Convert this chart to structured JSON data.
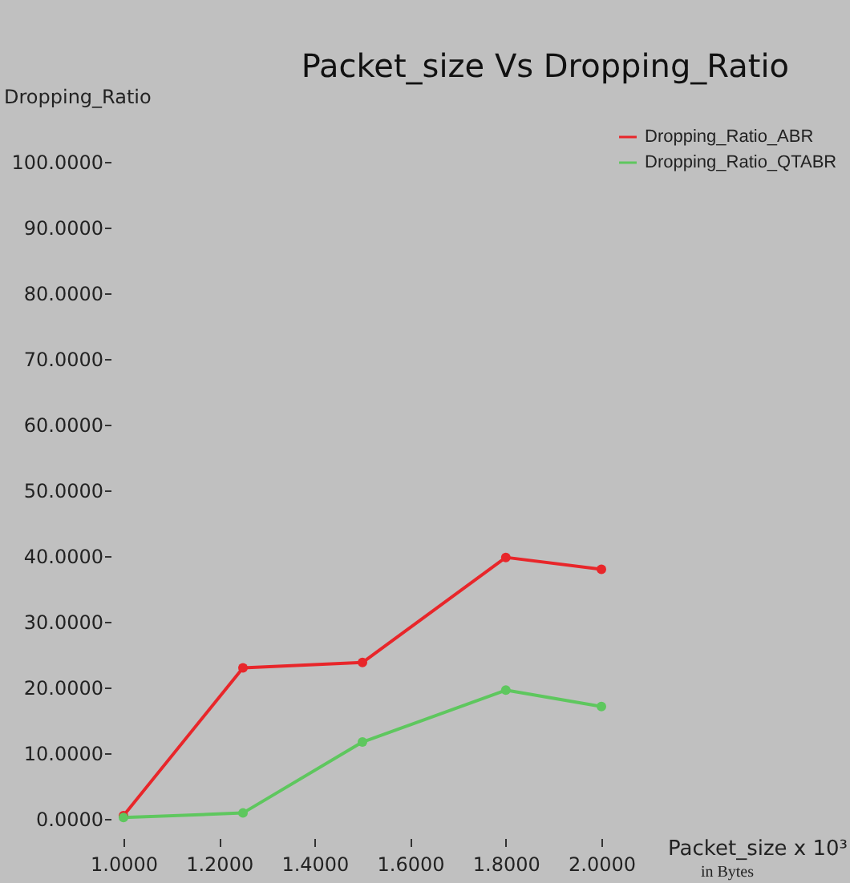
{
  "chart_data": {
    "type": "line",
    "title": "Packet_size Vs Dropping_Ratio",
    "xlabel": "Packet_size x 10³",
    "ylabel": "Dropping_Ratio",
    "annotations": [
      "in Bytes"
    ],
    "x": [
      1.0,
      1.25,
      1.5,
      1.8,
      2.0
    ],
    "series": [
      {
        "name": "Dropping_Ratio_ABR",
        "color": "#e8262a",
        "values": [
          0.5,
          23.0,
          23.8,
          39.8,
          38.0
        ]
      },
      {
        "name": "Dropping_Ratio_QTABR",
        "color": "#5ec75e",
        "values": [
          0.2,
          0.9,
          11.7,
          19.6,
          17.1
        ]
      }
    ],
    "xlim": [
      1.0,
      2.0
    ],
    "ylim": [
      0,
      100
    ],
    "xticks": [
      {
        "value": 1.0,
        "label": "1.0000"
      },
      {
        "value": 1.2,
        "label": "1.2000"
      },
      {
        "value": 1.4,
        "label": "1.4000"
      },
      {
        "value": 1.6,
        "label": "1.6000"
      },
      {
        "value": 1.8,
        "label": "1.8000"
      },
      {
        "value": 2.0,
        "label": "2.0000"
      }
    ],
    "yticks": [
      {
        "value": 0,
        "label": "0.0000"
      },
      {
        "value": 10,
        "label": "10.0000"
      },
      {
        "value": 20,
        "label": "20.0000"
      },
      {
        "value": 30,
        "label": "30.0000"
      },
      {
        "value": 40,
        "label": "40.0000"
      },
      {
        "value": 50,
        "label": "50.0000"
      },
      {
        "value": 60,
        "label": "60.0000"
      },
      {
        "value": 70,
        "label": "70.0000"
      },
      {
        "value": 80,
        "label": "80.0000"
      },
      {
        "value": 90,
        "label": "90.0000"
      },
      {
        "value": 100,
        "label": "100.0000"
      }
    ],
    "grid": false,
    "legend": "top right",
    "marker": "circle",
    "line_style": "solid"
  }
}
